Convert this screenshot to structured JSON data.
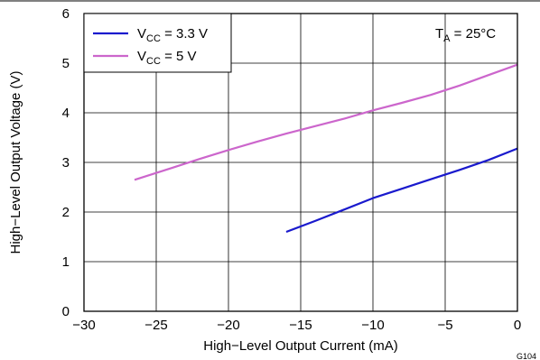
{
  "figure_id": "G104",
  "chart_data": {
    "type": "line",
    "xlabel": "High−Level Output Current (mA)",
    "ylabel": "High−Level Output Voltage (V)",
    "xlim": [
      -30,
      0
    ],
    "ylim": [
      0,
      6
    ],
    "x_ticks": [
      -30,
      -25,
      -20,
      -15,
      -10,
      -5,
      0
    ],
    "x_tick_labels": [
      "−30",
      "−25",
      "−20",
      "−15",
      "−10",
      "−5",
      "0"
    ],
    "y_ticks": [
      0,
      1,
      2,
      3,
      4,
      5,
      6
    ],
    "y_tick_labels": [
      "0",
      "1",
      "2",
      "3",
      "4",
      "5",
      "6"
    ],
    "grid": true,
    "legend_position": "top-left",
    "annotation": {
      "main": "T",
      "sub": "A",
      "rest": " = 25°C",
      "position": "top-right"
    },
    "series": [
      {
        "name": "V_CC = 3.3 V",
        "label_main": "V",
        "label_sub": "CC",
        "label_rest": " = 3.3 V",
        "color": "#1a1acd",
        "x": [
          -16,
          -14,
          -12,
          -10,
          -8,
          -6,
          -4,
          -2,
          0
        ],
        "y": [
          1.6,
          1.82,
          2.05,
          2.28,
          2.47,
          2.66,
          2.85,
          3.05,
          3.28
        ]
      },
      {
        "name": "V_CC = 5 V",
        "label_main": "V",
        "label_sub": "CC",
        "label_rest": " = 5 V",
        "color": "#cc66cc",
        "x": [
          -26.5,
          -24,
          -22,
          -20,
          -18,
          -16,
          -14,
          -12,
          -10,
          -8,
          -6,
          -4,
          -2,
          0
        ],
        "y": [
          2.65,
          2.88,
          3.07,
          3.25,
          3.42,
          3.58,
          3.73,
          3.88,
          4.05,
          4.2,
          4.36,
          4.55,
          4.76,
          4.97
        ]
      }
    ]
  }
}
